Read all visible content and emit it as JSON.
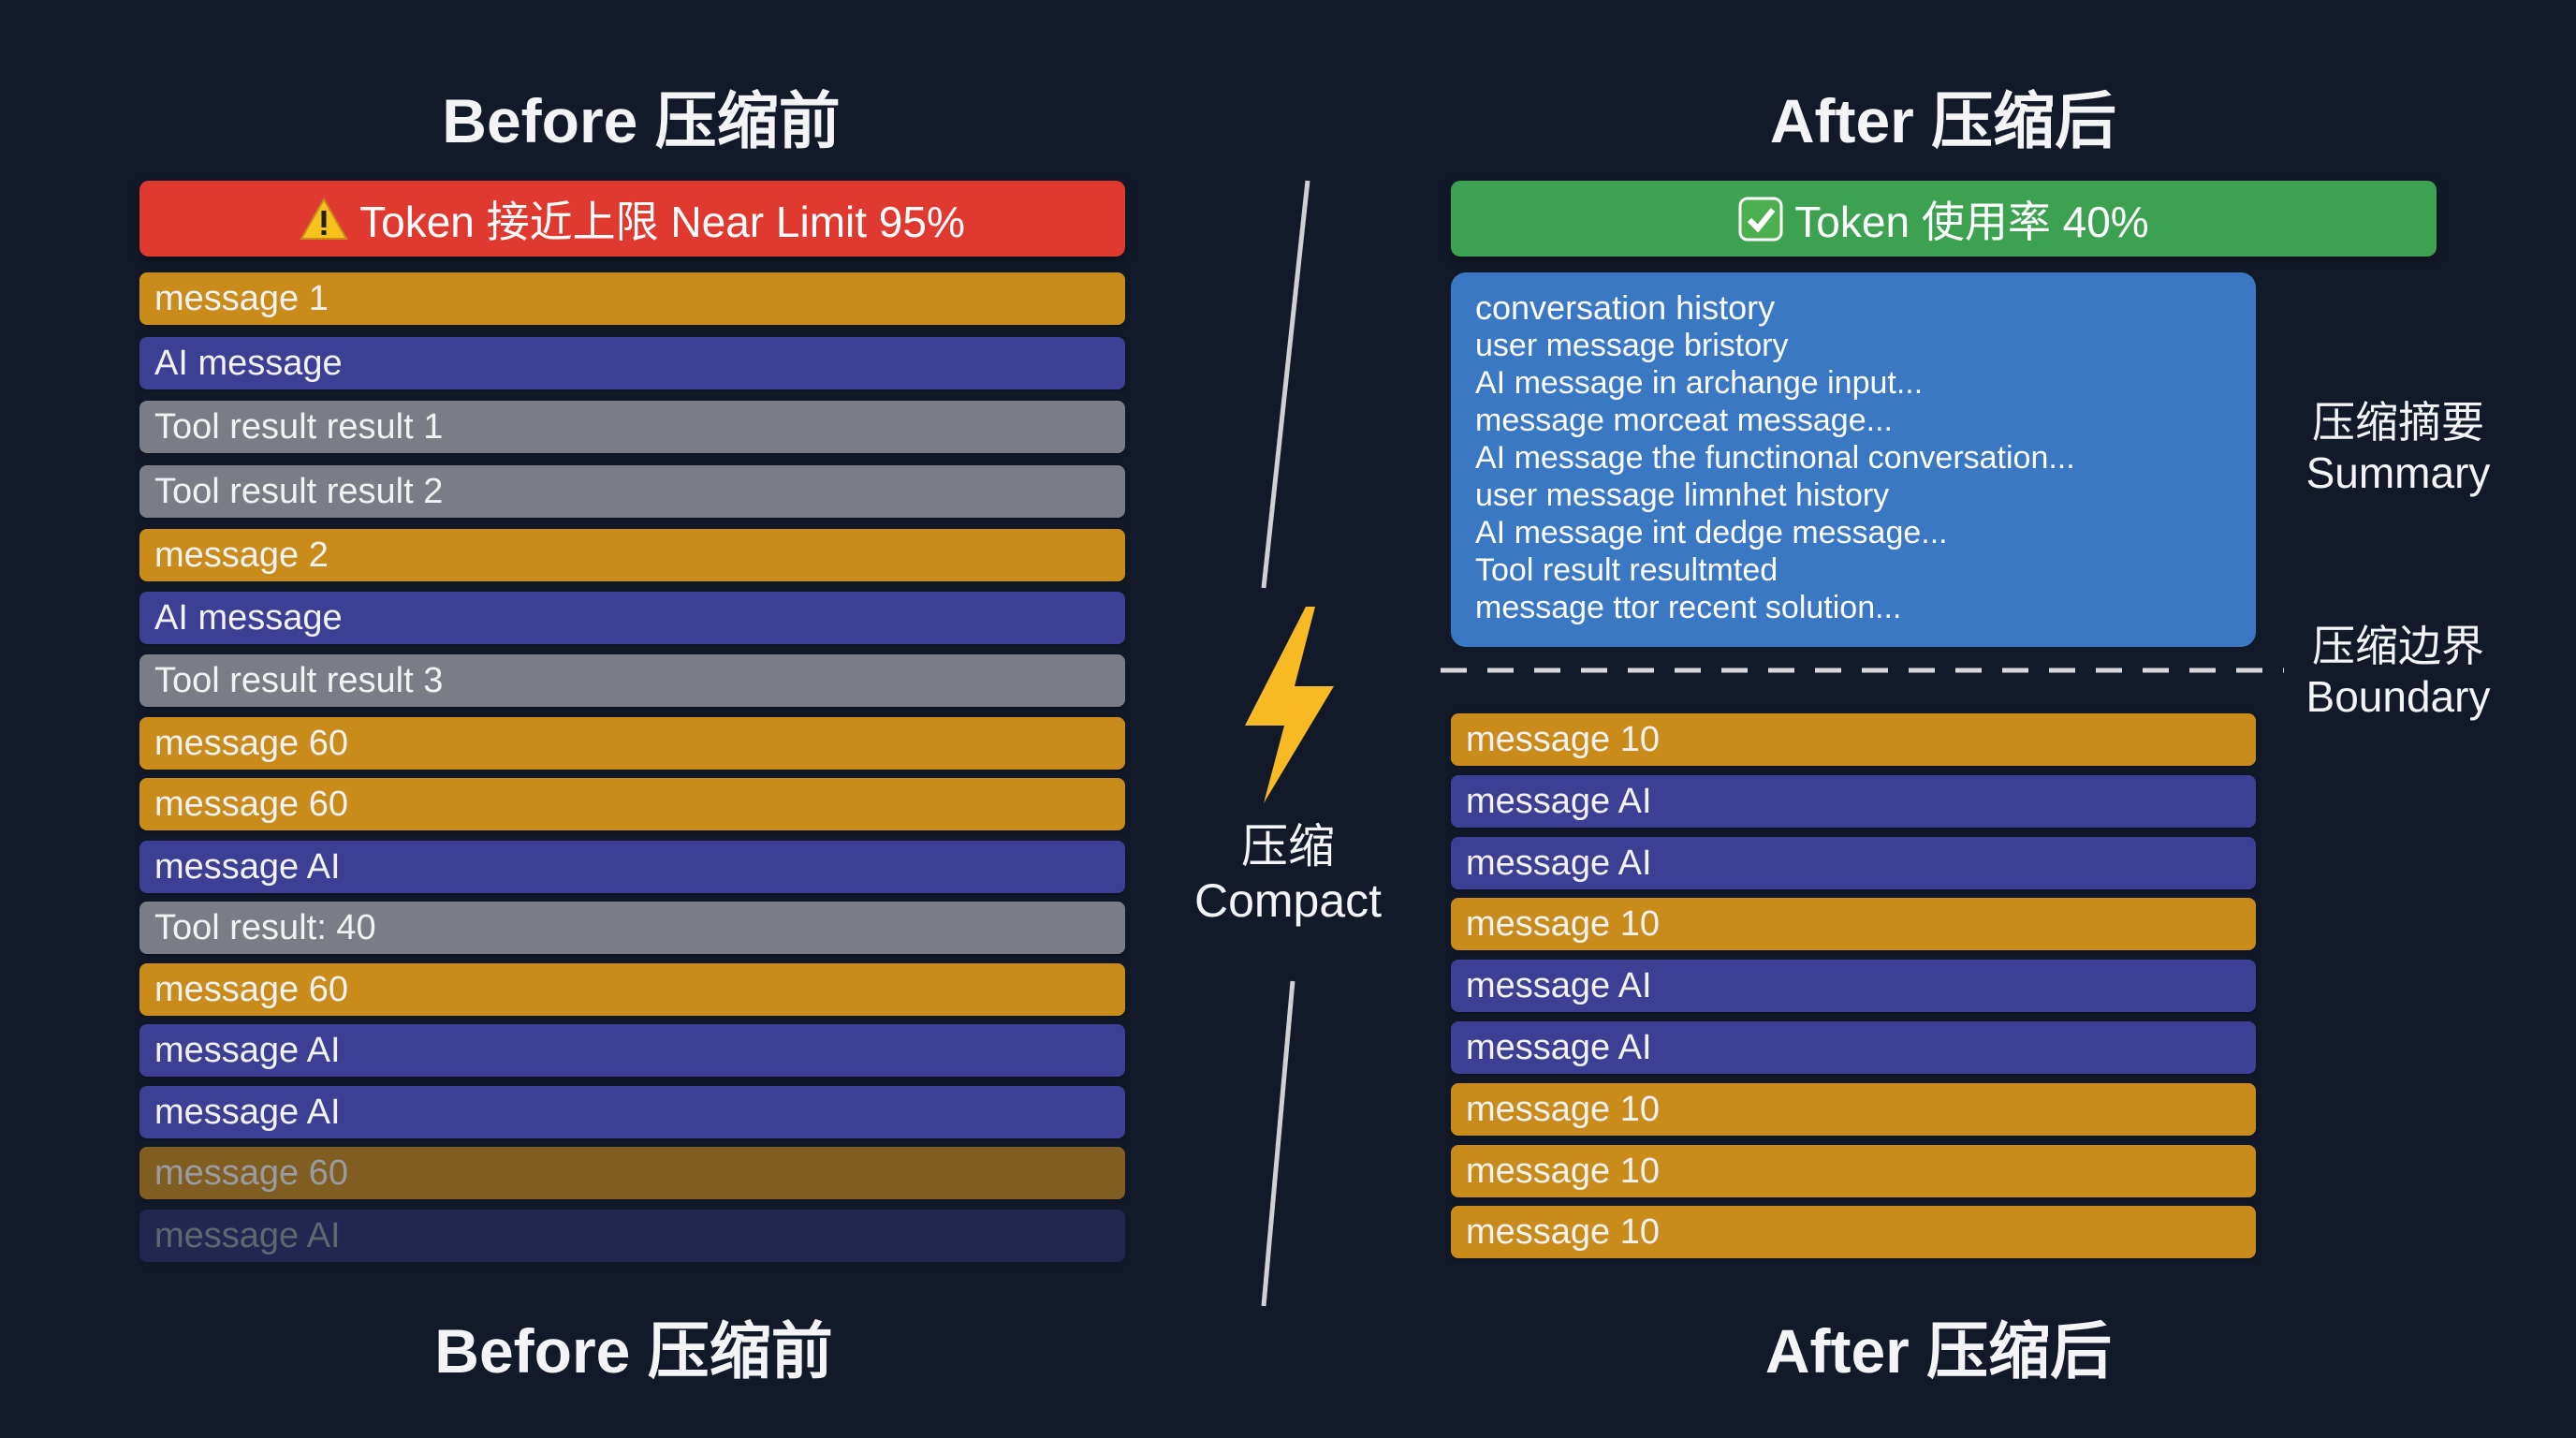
{
  "before": {
    "title_top": "Before 压缩前",
    "title_bottom": "Before 压缩前",
    "header": {
      "icon": "warning-icon",
      "text": "Token 接近上限 Near Limit 95%",
      "color": "#e03a30"
    },
    "rows": [
      {
        "label": "message 1",
        "type": "user"
      },
      {
        "label": "AI message",
        "type": "ai"
      },
      {
        "label": "Tool result result 1",
        "type": "tool"
      },
      {
        "label": "Tool result result 2",
        "type": "tool"
      },
      {
        "label": "message 2",
        "type": "user"
      },
      {
        "label": "AI message",
        "type": "ai"
      },
      {
        "label": "Tool result result 3",
        "type": "tool"
      },
      {
        "label": "message 60",
        "type": "user"
      },
      {
        "label": "message 60",
        "type": "user"
      },
      {
        "label": "message AI",
        "type": "ai"
      },
      {
        "label": "Tool result: 40",
        "type": "tool"
      },
      {
        "label": "message 60",
        "type": "user"
      },
      {
        "label": "message AI",
        "type": "ai"
      },
      {
        "label": "message AI",
        "type": "ai"
      },
      {
        "label": "message 60",
        "type": "user"
      },
      {
        "label": "message AI",
        "type": "ai"
      }
    ]
  },
  "center": {
    "label_cn": "压缩",
    "label_en": "Compact",
    "icon": "lightning-icon"
  },
  "after": {
    "title_top": "After 压缩后",
    "title_bottom": "After 压缩后",
    "header": {
      "icon": "check-icon",
      "text": "Token 使用率 40%",
      "color": "#3da152"
    },
    "summary_lines": [
      "conversation history",
      "user message bristory",
      "AI message in archange input...",
      "message morceat message...",
      "AI message the functinonal conversation...",
      "user message limnhet history",
      "AI message int dedge message...",
      "Tool result resultmted",
      "message ttor recent solution..."
    ],
    "summary_label": {
      "cn": "压缩摘要",
      "en": "Summary"
    },
    "boundary_label": {
      "cn": "压缩边界",
      "en": "Boundary"
    },
    "rows": [
      {
        "label": "message 10",
        "type": "user"
      },
      {
        "label": "message AI",
        "type": "ai"
      },
      {
        "label": "message AI",
        "type": "ai"
      },
      {
        "label": "message 10",
        "type": "user"
      },
      {
        "label": "message AI",
        "type": "ai"
      },
      {
        "label": "message AI",
        "type": "ai"
      },
      {
        "label": "message 10",
        "type": "user"
      },
      {
        "label": "message 10",
        "type": "user"
      },
      {
        "label": "message 10",
        "type": "user"
      }
    ]
  },
  "colors": {
    "user": "#c98b1a",
    "ai": "#3d3f94",
    "tool": "#7b7d86",
    "summary": "#3a78c4",
    "background": "#121a2a"
  }
}
